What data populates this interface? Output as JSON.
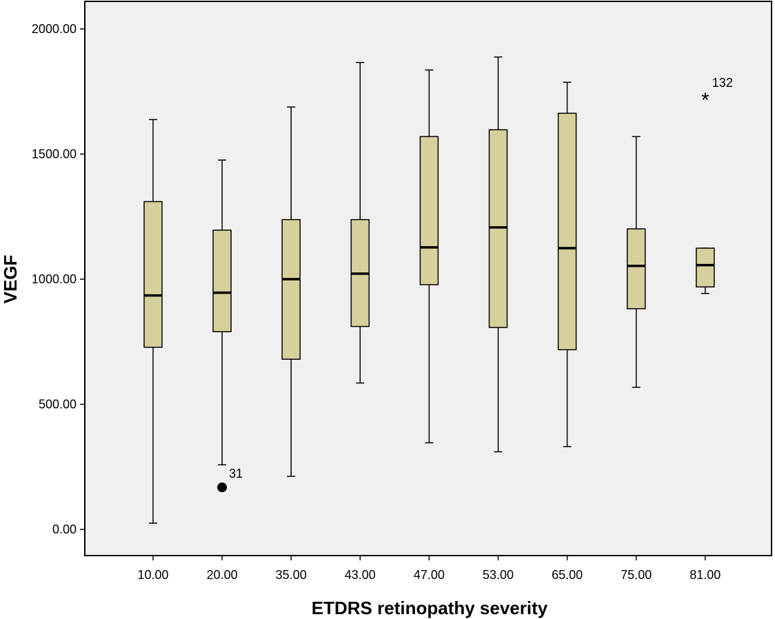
{
  "colors": {
    "plot_background": "#f0f0f0",
    "box_fill": "#d6d19c",
    "stroke": "#000000"
  },
  "chart_data": {
    "type": "boxplot",
    "title": "",
    "xlabel": "ETDRS retinopathy severity",
    "ylabel": "VEGF",
    "ylim": [
      -110,
      2110
    ],
    "yticks": [
      0,
      500,
      1000,
      1500,
      2000
    ],
    "ytick_labels": [
      "0.00",
      "500.00",
      "1000.00",
      "1500.00",
      "2000.00"
    ],
    "grid": false,
    "categories": [
      "10.00",
      "20.00",
      "35.00",
      "43.00",
      "47.00",
      "53.00",
      "65.00",
      "75.00",
      "81.00"
    ],
    "boxes": [
      {
        "category": "10.00",
        "min": 25,
        "q1": 728,
        "median": 935,
        "q3": 1310,
        "max": 1638
      },
      {
        "category": "20.00",
        "min": 258,
        "q1": 790,
        "median": 946,
        "q3": 1196,
        "max": 1476
      },
      {
        "category": "35.00",
        "min": 212,
        "q1": 680,
        "median": 1000,
        "q3": 1238,
        "max": 1688
      },
      {
        "category": "43.00",
        "min": 585,
        "q1": 811,
        "median": 1022,
        "q3": 1238,
        "max": 1866
      },
      {
        "category": "47.00",
        "min": 346,
        "q1": 978,
        "median": 1127,
        "q3": 1570,
        "max": 1836
      },
      {
        "category": "53.00",
        "min": 310,
        "q1": 807,
        "median": 1207,
        "q3": 1597,
        "max": 1888
      },
      {
        "category": "65.00",
        "min": 331,
        "q1": 718,
        "median": 1124,
        "q3": 1663,
        "max": 1787
      },
      {
        "category": "75.00",
        "min": 568,
        "q1": 882,
        "median": 1053,
        "q3": 1201,
        "max": 1570
      },
      {
        "category": "81.00",
        "min": 943,
        "q1": 969,
        "median": 1056,
        "q3": 1124,
        "max": 1124
      }
    ],
    "outliers": [
      {
        "category": "20.00",
        "value": 168,
        "label": "31",
        "marker": "circle"
      },
      {
        "category": "81.00",
        "value": 1730,
        "label": "132",
        "marker": "star"
      }
    ]
  }
}
